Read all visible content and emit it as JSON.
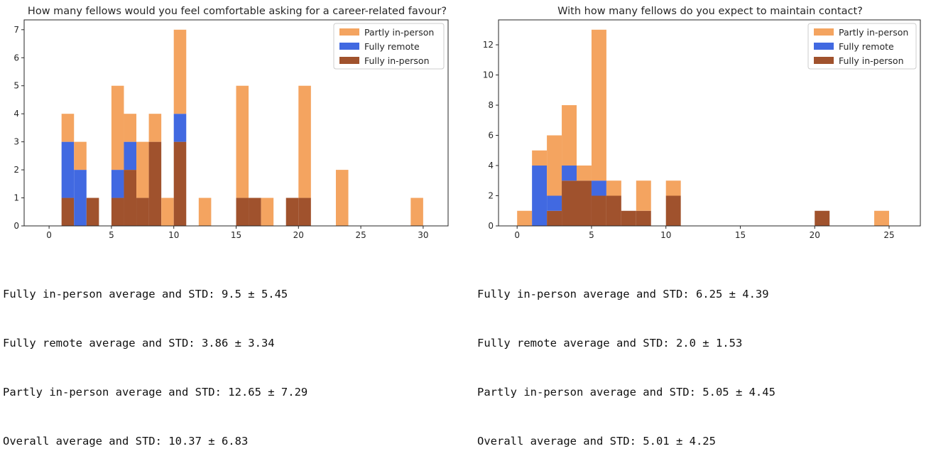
{
  "colors": {
    "partly": "#f4a460",
    "remote": "#4169e1",
    "inperson": "#a0522d"
  },
  "chart_data": [
    {
      "type": "bar",
      "subtype": "stacked-histogram",
      "title": "How many fellows would you feel comfortable asking for a career-related favour?",
      "xlabel": "",
      "ylabel": "",
      "bin_width": 1,
      "xlim": [
        -2,
        32
      ],
      "ylim": [
        0,
        7.35
      ],
      "xticks": [
        0,
        5,
        10,
        15,
        20,
        25,
        30
      ],
      "yticks": [
        0,
        1,
        2,
        3,
        4,
        5,
        6,
        7
      ],
      "legend_position": "top-right",
      "legend": [
        "Partly in-person",
        "Fully remote",
        "Fully in-person"
      ],
      "x": [
        1,
        2,
        3,
        5,
        6,
        7,
        8,
        9,
        10,
        12,
        15,
        16,
        17,
        19,
        20,
        23,
        29
      ],
      "series": [
        {
          "name": "Fully in-person",
          "key": "inperson",
          "values": [
            1,
            0,
            1,
            1,
            2,
            1,
            3,
            0,
            3,
            0,
            1,
            1,
            0,
            1,
            1,
            0,
            0
          ]
        },
        {
          "name": "Fully remote",
          "key": "remote",
          "values": [
            2,
            2,
            0,
            1,
            1,
            0,
            0,
            0,
            1,
            0,
            0,
            0,
            0,
            0,
            0,
            0,
            0
          ]
        },
        {
          "name": "Partly in-person",
          "key": "partly",
          "values": [
            1,
            1,
            0,
            3,
            1,
            2,
            1,
            1,
            3,
            1,
            4,
            0,
            1,
            0,
            4,
            2,
            1
          ]
        }
      ]
    },
    {
      "type": "bar",
      "subtype": "stacked-histogram",
      "title": "With how many fellows do you expect to maintain contact?",
      "xlabel": "",
      "ylabel": "",
      "bin_width": 1,
      "xlim": [
        -1.25,
        27.1
      ],
      "ylim": [
        0,
        13.65
      ],
      "xticks": [
        0,
        5,
        10,
        15,
        20,
        25
      ],
      "yticks": [
        0,
        2,
        4,
        6,
        8,
        10,
        12
      ],
      "legend_position": "top-right",
      "legend": [
        "Partly in-person",
        "Fully remote",
        "Fully in-person"
      ],
      "x": [
        0,
        1,
        2,
        3,
        4,
        5,
        6,
        7,
        8,
        10,
        20,
        24
      ],
      "series": [
        {
          "name": "Fully in-person",
          "key": "inperson",
          "values": [
            0,
            0,
            1,
            3,
            3,
            2,
            2,
            1,
            1,
            2,
            1,
            0
          ]
        },
        {
          "name": "Fully remote",
          "key": "remote",
          "values": [
            0,
            4,
            1,
            1,
            0,
            1,
            0,
            0,
            0,
            0,
            0,
            0
          ]
        },
        {
          "name": "Partly in-person",
          "key": "partly",
          "values": [
            1,
            1,
            4,
            4,
            1,
            10,
            1,
            0,
            2,
            1,
            0,
            1
          ]
        }
      ]
    }
  ],
  "stats": [
    {
      "lines": [
        "Fully in-person average and STD: 9.5 ± 5.45",
        "Fully remote average and STD: 3.86 ± 3.34",
        "Partly in-person average and STD: 12.65 ± 7.29",
        "Overall average and STD: 10.37 ± 6.83"
      ]
    },
    {
      "lines": [
        "Fully in-person average and STD: 6.25 ± 4.39",
        "Fully remote average and STD: 2.0 ± 1.53",
        "Partly in-person average and STD: 5.05 ± 4.45",
        "Overall average and STD: 5.01 ± 4.25"
      ]
    }
  ]
}
